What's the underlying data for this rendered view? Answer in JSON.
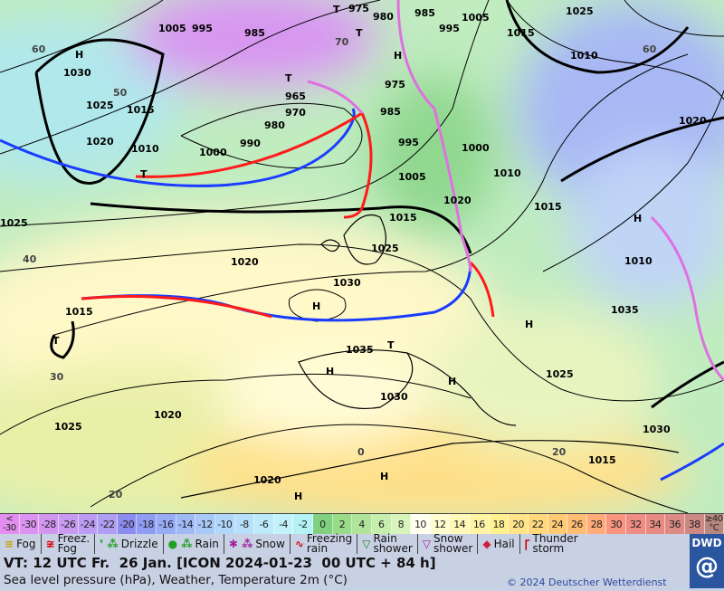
{
  "map": {
    "pressure_labels": [
      "1005",
      "995",
      "985",
      "975",
      "980",
      "985",
      "1005",
      "995",
      "1015",
      "1025",
      "1010",
      "1030",
      "1025",
      "1015",
      "1020",
      "1010",
      "990",
      "1000",
      "980",
      "965",
      "970",
      "975",
      "985",
      "995",
      "1000",
      "1010",
      "1005",
      "1015",
      "1020",
      "1015",
      "1010",
      "1025",
      "1025",
      "1020",
      "1030",
      "1035",
      "1015",
      "1035",
      "1025",
      "1030",
      "1020",
      "1025",
      "1030",
      "1015",
      "1020",
      "1020"
    ],
    "pressure_systems": [
      "H",
      "H",
      "T",
      "T",
      "T",
      "H",
      "H",
      "T",
      "H",
      "T",
      "H",
      "H",
      "H",
      "H",
      "T"
    ],
    "temp_labels": [
      "60",
      "50",
      "40",
      "30",
      "20",
      "0",
      "70",
      "60",
      "20"
    ],
    "colors": {
      "cold_front": "#1a3cff",
      "warm_front": "#ff1a1a",
      "occlusion": "#e070e0",
      "isobar": "#000000"
    }
  },
  "temperature_scale": [
    {
      "label": "<\n-30",
      "color": "#e38ef0"
    },
    {
      "label": "-30",
      "color": "#dc92f0"
    },
    {
      "label": "-28",
      "color": "#d296f0"
    },
    {
      "label": "-26",
      "color": "#c89af2"
    },
    {
      "label": "-24",
      "color": "#bc9cf2"
    },
    {
      "label": "-22",
      "color": "#ae9ef4"
    },
    {
      "label": "-20",
      "color": "#8c8cf0"
    },
    {
      "label": "-18",
      "color": "#909cf4"
    },
    {
      "label": "-16",
      "color": "#98acf6"
    },
    {
      "label": "-14",
      "color": "#a0baf8"
    },
    {
      "label": "-12",
      "color": "#a8c8f8"
    },
    {
      "label": "-10",
      "color": "#b0d6fa"
    },
    {
      "label": "-8",
      "color": "#b6e0fa"
    },
    {
      "label": "-6",
      "color": "#bceafa"
    },
    {
      "label": "-4",
      "color": "#c4f2fa"
    },
    {
      "label": "-2",
      "color": "#b4f2f6"
    },
    {
      "label": "0",
      "color": "#80d080"
    },
    {
      "label": "2",
      "color": "#98dc88"
    },
    {
      "label": "4",
      "color": "#b0e49a"
    },
    {
      "label": "6",
      "color": "#c6eeac"
    },
    {
      "label": "8",
      "color": "#d8f4bc"
    },
    {
      "label": "10",
      "color": "#fffff0"
    },
    {
      "label": "12",
      "color": "#fffcd0"
    },
    {
      "label": "14",
      "color": "#fff8b8"
    },
    {
      "label": "16",
      "color": "#fff4a4"
    },
    {
      "label": "18",
      "color": "#fff090"
    },
    {
      "label": "20",
      "color": "#ffe488"
    },
    {
      "label": "22",
      "color": "#ffd87c"
    },
    {
      "label": "24",
      "color": "#ffca74"
    },
    {
      "label": "26",
      "color": "#ffbc74"
    },
    {
      "label": "28",
      "color": "#ffac78"
    },
    {
      "label": "30",
      "color": "#f89480"
    },
    {
      "label": "32",
      "color": "#f08c84"
    },
    {
      "label": "34",
      "color": "#e88a84"
    },
    {
      "label": "36",
      "color": "#dc8a84"
    },
    {
      "label": "38",
      "color": "#cc8884"
    },
    {
      "label": "≥40\n°C",
      "color": "#b88880"
    }
  ],
  "weather_legend": [
    {
      "label": "Fog",
      "icon": "fog-icon",
      "symbol": "≡",
      "color": "#c8a000"
    },
    {
      "label": "Freez.\nFog",
      "icon": "freezing-fog-icon",
      "symbol": "≆",
      "color": "#e00000"
    },
    {
      "label": "Drizzle",
      "icon": "drizzle-icon",
      "symbol": "❜ ⁂",
      "color": "#20a020"
    },
    {
      "label": "Rain",
      "icon": "rain-icon",
      "symbol": "● ⁂",
      "color": "#20a020"
    },
    {
      "label": "Snow",
      "icon": "snow-icon",
      "symbol": "✱ ⁂",
      "color": "#a020a0"
    },
    {
      "label": "Freezing\nrain",
      "icon": "freezing-rain-icon",
      "symbol": "∿",
      "color": "#d01010"
    },
    {
      "label": "Rain\nshower",
      "icon": "rain-shower-icon",
      "symbol": "▽",
      "color": "#208020"
    },
    {
      "label": "Snow\nshower",
      "icon": "snow-shower-icon",
      "symbol": "▽",
      "color": "#a020a0"
    },
    {
      "label": "Hail",
      "icon": "hail-icon",
      "symbol": "◆",
      "color": "#d02040"
    },
    {
      "label": "Thunder\nstorm",
      "icon": "thunderstorm-icon",
      "symbol": "Ꞅ",
      "color": "#c00000"
    }
  ],
  "footer": {
    "valid_time": "VT: 12 UTC Fr.  26 Jan. [ICON 2024-01-23  00 UTC + 84 h]",
    "subtitle": "Sea level pressure (hPa), Weather, Temperature 2m (°C)",
    "copyright": "© 2024 Deutscher Wetterdienst",
    "logo_text": "DWD"
  }
}
